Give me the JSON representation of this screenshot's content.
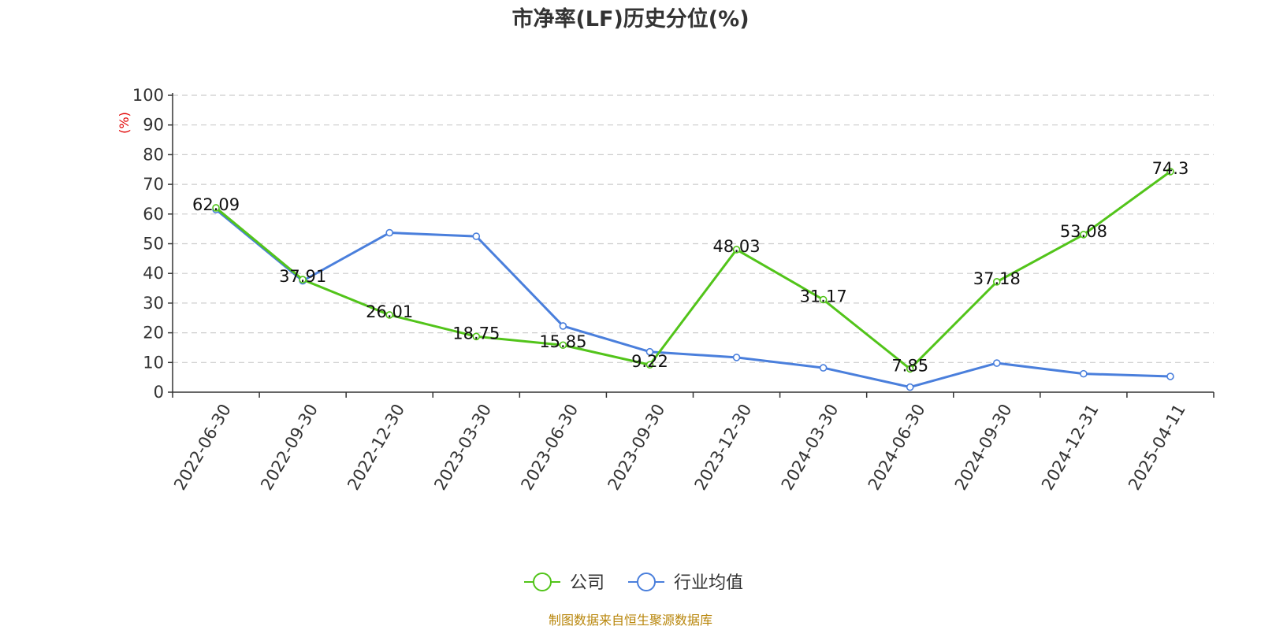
{
  "chart_data": {
    "type": "line",
    "title": "市净率(LF)历史分位(%)",
    "ylabel": "(%)",
    "ylim": [
      0,
      100
    ],
    "yticks": [
      0,
      10,
      20,
      30,
      40,
      50,
      60,
      70,
      80,
      90,
      100
    ],
    "grid": true,
    "legend_position": "bottom",
    "categories": [
      "2022-06-30",
      "2022-09-30",
      "2022-12-30",
      "2023-03-30",
      "2023-06-30",
      "2023-09-30",
      "2023-12-30",
      "2024-03-30",
      "2024-06-30",
      "2024-09-30",
      "2024-12-31",
      "2025-04-11"
    ],
    "series": [
      {
        "name": "公司",
        "color": "#52c41a",
        "values": [
          62.09,
          37.91,
          26.01,
          18.75,
          15.85,
          9.22,
          48.03,
          31.17,
          7.85,
          37.18,
          53.08,
          74.3
        ],
        "labels": [
          "62.09",
          "37.91",
          "26.01",
          "18.75",
          "15.85",
          "9.22",
          "48.03",
          "31.17",
          "7.85",
          "37.18",
          "53.08",
          "74.3"
        ]
      },
      {
        "name": "行业均值",
        "color": "#4a7fdc",
        "values": [
          61.5,
          37.5,
          53.7,
          52.5,
          22.3,
          13.6,
          11.7,
          8.2,
          1.7,
          9.8,
          6.2,
          5.3
        ]
      }
    ]
  },
  "source_note": "制图数据来自恒生聚源数据库"
}
